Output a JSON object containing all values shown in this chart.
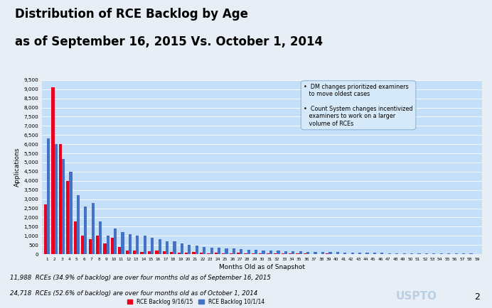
{
  "title_line1": "Distribution of RCE Backlog by Age",
  "title_line2": "as of September 16, 2015 Vs. October 1, 2014",
  "xlabel": "Months Old as of Snapshot",
  "ylabel": "Applications",
  "ylim": [
    0,
    9500
  ],
  "yticks": [
    0,
    500,
    1000,
    1500,
    2000,
    2500,
    3000,
    3500,
    4000,
    4500,
    5000,
    5500,
    6000,
    6500,
    7000,
    7500,
    8000,
    8500,
    9000,
    9500
  ],
  "slide_bg": "#e8eef5",
  "chart_bg": "#c5dff8",
  "red_color": "#e8001c",
  "blue_color": "#4472c4",
  "footnote1": "11,988  RCEs (34.9% of backlog) are over four months old as of September 16, 2015",
  "footnote2": "24,718  RCEs (52.6% of backlog) are over four months old as of October 1, 2014",
  "ann_text": "•  DM changes prioritized examiners\n   to move oldest cases\n\n•  Count System changes incentivized\n   examiners to work on a larger\n   volume of RCEs",
  "legend_label_red": "RCE Backlog 9/16/15",
  "legend_label_blue": "RCE Backlog 10/1/14",
  "page_num": "2",
  "red_values": [
    2700,
    9100,
    6000,
    4000,
    1800,
    1000,
    800,
    1000,
    600,
    900,
    400,
    200,
    200,
    100,
    150,
    200,
    150,
    120,
    80,
    70,
    120,
    80,
    60,
    80,
    60,
    50,
    80,
    60,
    50,
    40,
    50,
    40,
    30,
    30,
    30,
    30,
    20,
    20,
    30,
    20,
    20,
    20,
    20,
    10,
    10,
    10,
    10,
    10,
    10,
    10,
    10,
    10,
    5,
    5,
    5,
    5,
    5,
    5,
    5
  ],
  "blue_values": [
    6300,
    6000,
    5200,
    4500,
    3200,
    2600,
    2800,
    1800,
    1000,
    1400,
    1200,
    1100,
    1000,
    1000,
    900,
    800,
    700,
    700,
    600,
    500,
    450,
    400,
    350,
    350,
    300,
    300,
    280,
    250,
    250,
    200,
    200,
    180,
    160,
    150,
    140,
    130,
    120,
    110,
    100,
    100,
    90,
    80,
    80,
    70,
    70,
    70,
    60,
    60,
    60,
    50,
    50,
    50,
    40,
    40,
    30,
    30,
    30,
    30,
    20
  ]
}
